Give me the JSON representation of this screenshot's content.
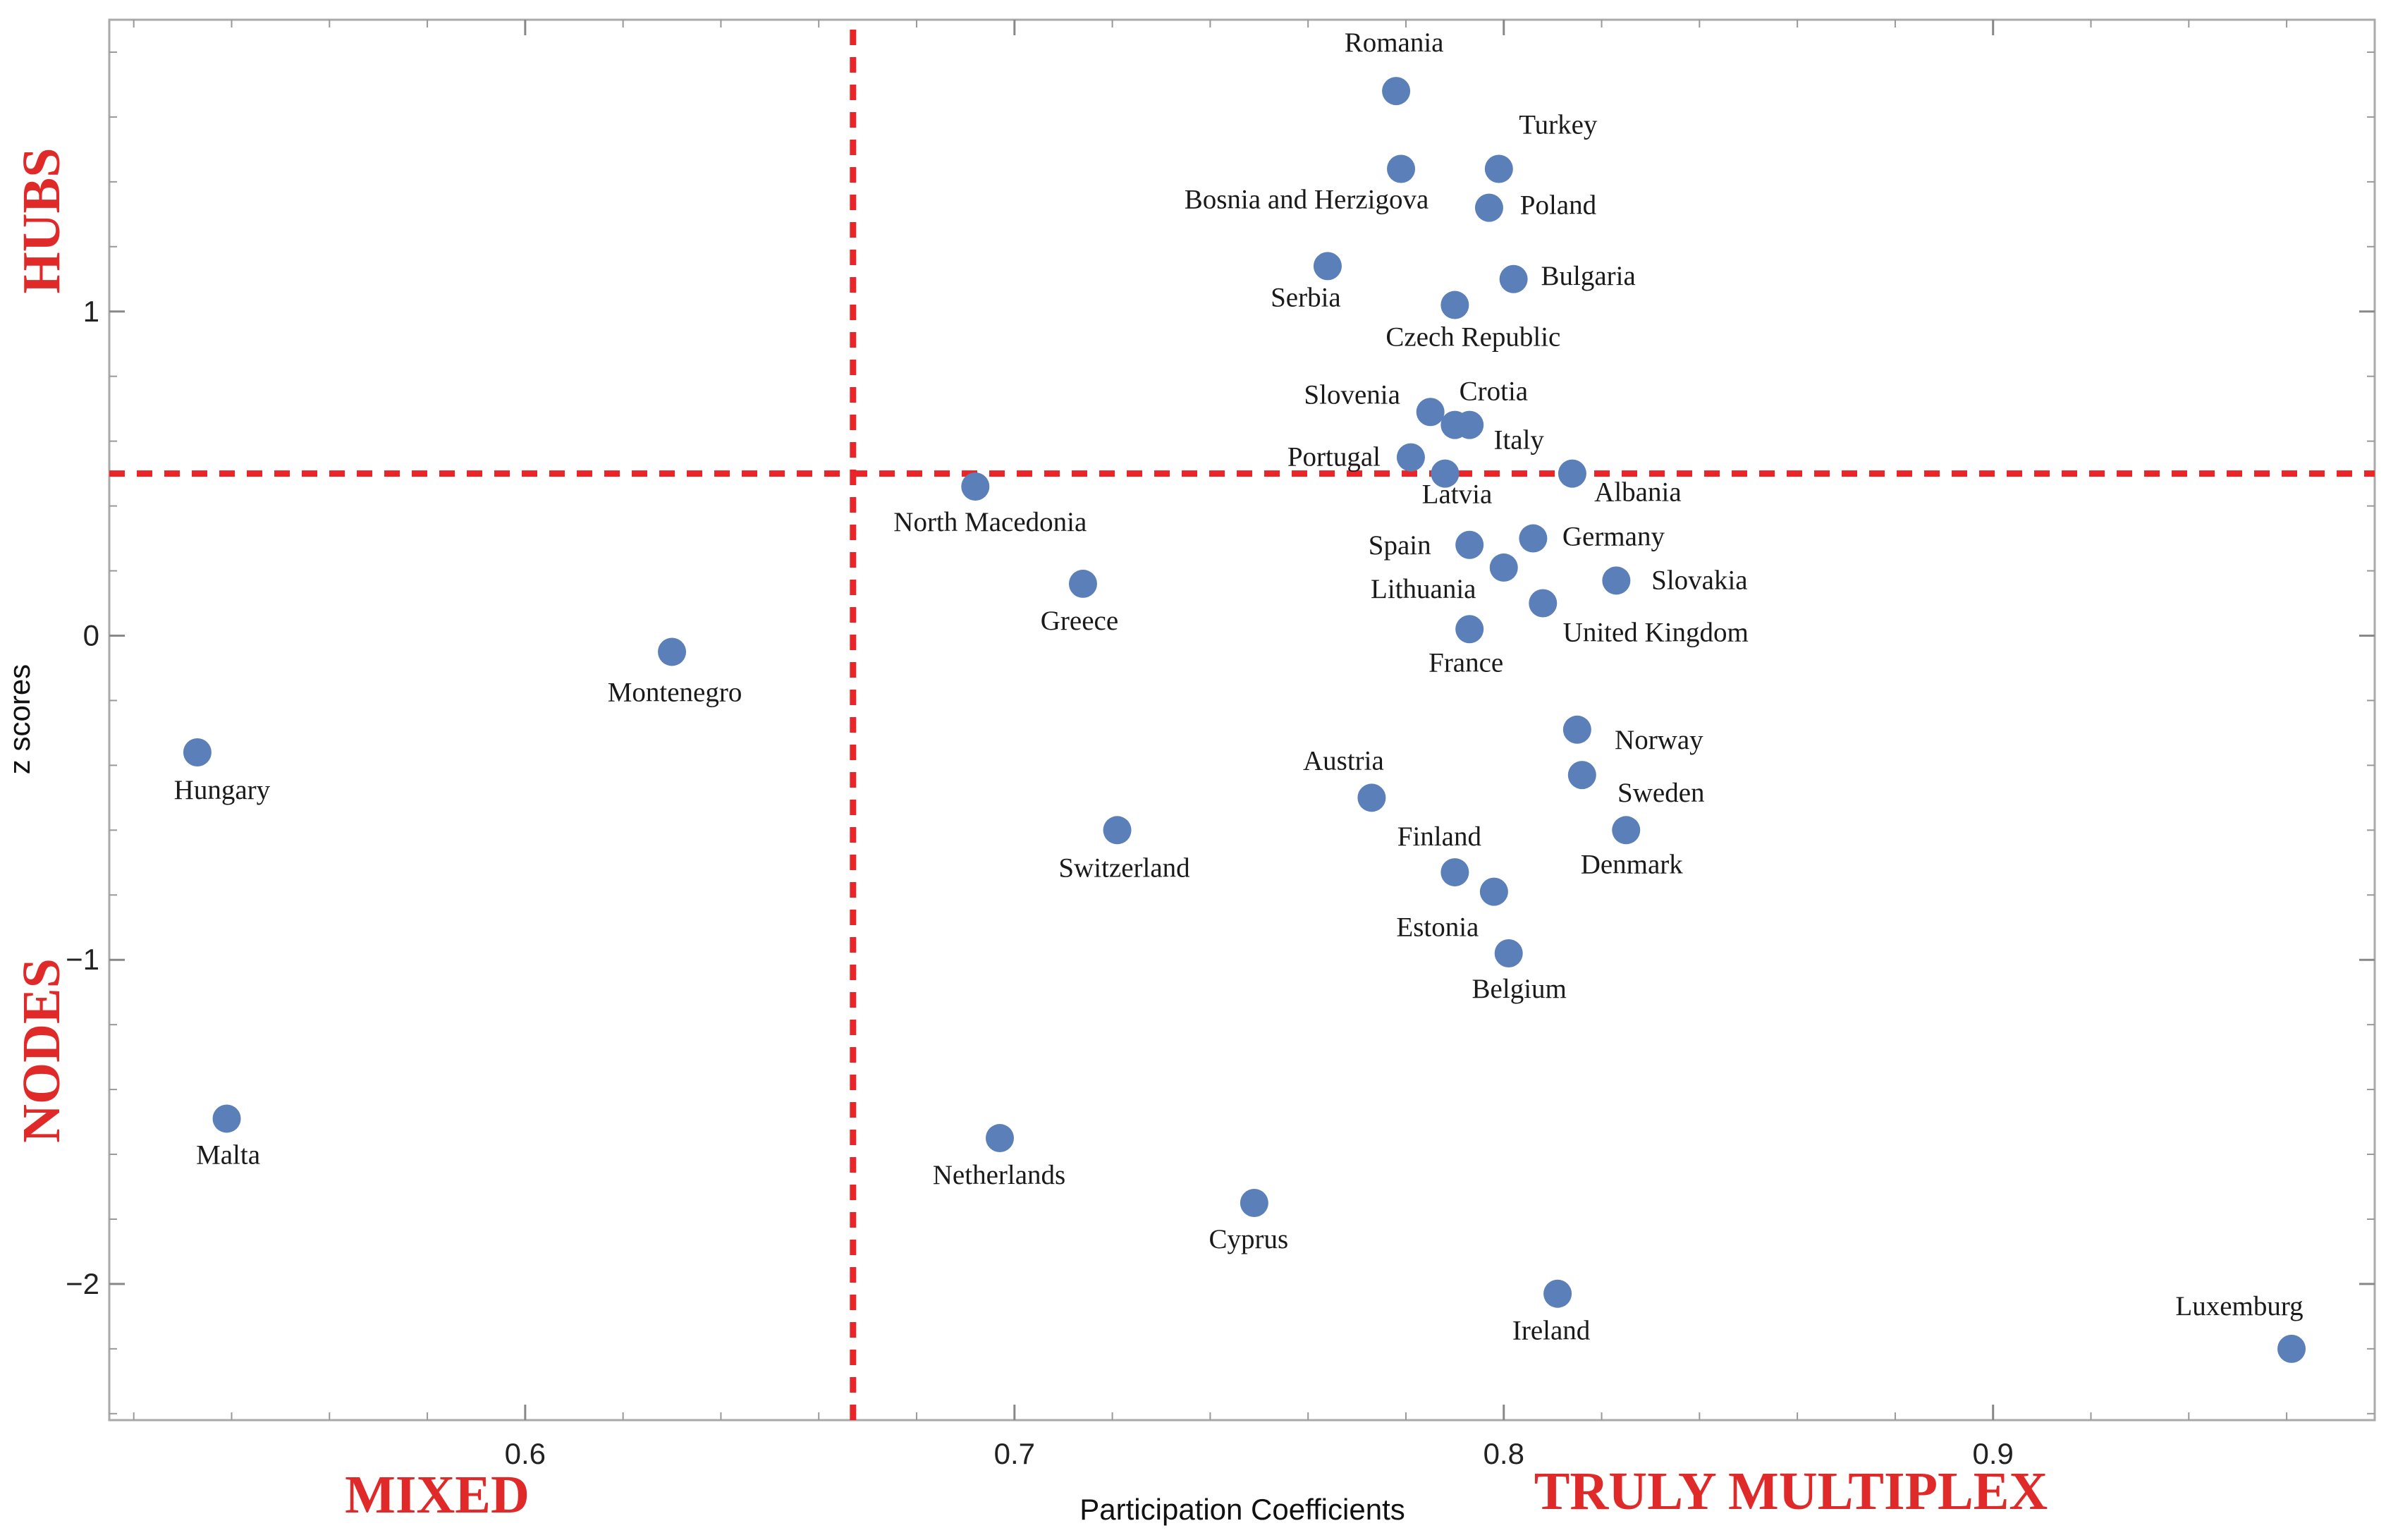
{
  "colors": {
    "point": "#5b7fb8",
    "threshold": "#e8262a",
    "quadrant_label": "#e02a2a",
    "frame": "#aaaaaa"
  },
  "chart_data": {
    "type": "scatter",
    "title": "",
    "xlabel": "Participation Coefficients",
    "ylabel": "z scores",
    "xlim": [
      0.515,
      0.978
    ],
    "ylim": [
      -2.42,
      1.9
    ],
    "x_ticks": [
      0.6,
      0.7,
      0.8,
      0.9
    ],
    "x_tick_labels": [
      "0.6",
      "0.7",
      "0.8",
      "0.9"
    ],
    "y_ticks": [
      -2,
      -1,
      0,
      1
    ],
    "y_tick_labels": [
      "−2",
      "−1",
      "0",
      "1"
    ],
    "thresholds": {
      "x": 0.667,
      "y": 0.5
    },
    "quadrant_labels": {
      "hubs": "HUBS",
      "nodes": "NODES",
      "mixed": "MIXED",
      "truly_multiplex": "TRULY MULTIPLEX"
    },
    "points": [
      {
        "label": "Romania",
        "x": 0.778,
        "y": 1.68
      },
      {
        "label": "Turkey",
        "x": 0.799,
        "y": 1.44
      },
      {
        "label": "Bosnia and Herzigova",
        "x": 0.779,
        "y": 1.44
      },
      {
        "label": "Poland",
        "x": 0.797,
        "y": 1.32
      },
      {
        "label": "Serbia",
        "x": 0.764,
        "y": 1.14
      },
      {
        "label": "Bulgaria",
        "x": 0.802,
        "y": 1.1
      },
      {
        "label": "Czech Republic",
        "x": 0.79,
        "y": 1.02
      },
      {
        "label": "Slovenia",
        "x": 0.785,
        "y": 0.69
      },
      {
        "label": "Crotia",
        "x": 0.79,
        "y": 0.65
      },
      {
        "label": "Italy",
        "x": 0.793,
        "y": 0.65
      },
      {
        "label": "Portugal",
        "x": 0.781,
        "y": 0.55
      },
      {
        "label": "Latvia",
        "x": 0.788,
        "y": 0.5
      },
      {
        "label": "Albania",
        "x": 0.814,
        "y": 0.5
      },
      {
        "label": "North Macedonia",
        "x": 0.692,
        "y": 0.46
      },
      {
        "label": "Germany",
        "x": 0.806,
        "y": 0.3
      },
      {
        "label": "Spain",
        "x": 0.793,
        "y": 0.28
      },
      {
        "label": "Lithuania",
        "x": 0.8,
        "y": 0.21
      },
      {
        "label": "Slovakia",
        "x": 0.823,
        "y": 0.17
      },
      {
        "label": "Greece",
        "x": 0.714,
        "y": 0.16
      },
      {
        "label": "United Kingdom",
        "x": 0.808,
        "y": 0.1
      },
      {
        "label": "France",
        "x": 0.793,
        "y": 0.02
      },
      {
        "label": "Montenegro",
        "x": 0.63,
        "y": -0.05
      },
      {
        "label": "Norway",
        "x": 0.815,
        "y": -0.29
      },
      {
        "label": "Hungary",
        "x": 0.533,
        "y": -0.36
      },
      {
        "label": "Sweden",
        "x": 0.816,
        "y": -0.43
      },
      {
        "label": "Austria",
        "x": 0.773,
        "y": -0.5
      },
      {
        "label": "Switzerland",
        "x": 0.721,
        "y": -0.6
      },
      {
        "label": "Denmark",
        "x": 0.825,
        "y": -0.6
      },
      {
        "label": "Finland",
        "x": 0.79,
        "y": -0.73
      },
      {
        "label": "Estonia",
        "x": 0.798,
        "y": -0.79
      },
      {
        "label": "Belgium",
        "x": 0.801,
        "y": -0.98
      },
      {
        "label": "Malta",
        "x": 0.539,
        "y": -1.49
      },
      {
        "label": "Netherlands",
        "x": 0.697,
        "y": -1.55
      },
      {
        "label": "Cyprus",
        "x": 0.749,
        "y": -1.75
      },
      {
        "label": "Ireland",
        "x": 0.811,
        "y": -2.03
      },
      {
        "label": "Luxemburg",
        "x": 0.961,
        "y": -2.2
      }
    ]
  }
}
